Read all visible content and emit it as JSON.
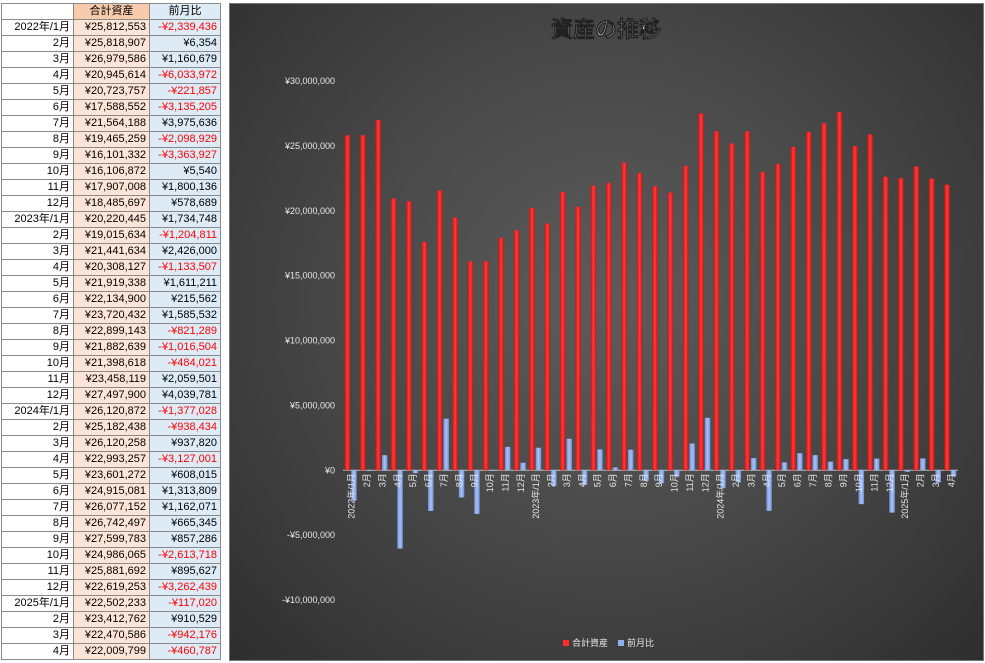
{
  "table": {
    "headers": [
      "",
      "合計資産",
      "前月比"
    ],
    "rows": [
      {
        "month": "2022年/1月",
        "total": "¥25,812,553",
        "diff": "-¥2,339,436"
      },
      {
        "month": "2月",
        "total": "¥25,818,907",
        "diff": "¥6,354"
      },
      {
        "month": "3月",
        "total": "¥26,979,586",
        "diff": "¥1,160,679"
      },
      {
        "month": "4月",
        "total": "¥20,945,614",
        "diff": "-¥6,033,972"
      },
      {
        "month": "5月",
        "total": "¥20,723,757",
        "diff": "-¥221,857"
      },
      {
        "month": "6月",
        "total": "¥17,588,552",
        "diff": "-¥3,135,205"
      },
      {
        "month": "7月",
        "total": "¥21,564,188",
        "diff": "¥3,975,636"
      },
      {
        "month": "8月",
        "total": "¥19,465,259",
        "diff": "-¥2,098,929"
      },
      {
        "month": "9月",
        "total": "¥16,101,332",
        "diff": "-¥3,363,927"
      },
      {
        "month": "10月",
        "total": "¥16,106,872",
        "diff": "¥5,540"
      },
      {
        "month": "11月",
        "total": "¥17,907,008",
        "diff": "¥1,800,136"
      },
      {
        "month": "12月",
        "total": "¥18,485,697",
        "diff": "¥578,689"
      },
      {
        "month": "2023年/1月",
        "total": "¥20,220,445",
        "diff": "¥1,734,748"
      },
      {
        "month": "2月",
        "total": "¥19,015,634",
        "diff": "-¥1,204,811"
      },
      {
        "month": "3月",
        "total": "¥21,441,634",
        "diff": "¥2,426,000"
      },
      {
        "month": "4月",
        "total": "¥20,308,127",
        "diff": "-¥1,133,507"
      },
      {
        "month": "5月",
        "total": "¥21,919,338",
        "diff": "¥1,611,211"
      },
      {
        "month": "6月",
        "total": "¥22,134,900",
        "diff": "¥215,562"
      },
      {
        "month": "7月",
        "total": "¥23,720,432",
        "diff": "¥1,585,532"
      },
      {
        "month": "8月",
        "total": "¥22,899,143",
        "diff": "-¥821,289"
      },
      {
        "month": "9月",
        "total": "¥21,882,639",
        "diff": "-¥1,016,504"
      },
      {
        "month": "10月",
        "total": "¥21,398,618",
        "diff": "-¥484,021"
      },
      {
        "month": "11月",
        "total": "¥23,458,119",
        "diff": "¥2,059,501"
      },
      {
        "month": "12月",
        "total": "¥27,497,900",
        "diff": "¥4,039,781"
      },
      {
        "month": "2024年/1月",
        "total": "¥26,120,872",
        "diff": "-¥1,377,028"
      },
      {
        "month": "2月",
        "total": "¥25,182,438",
        "diff": "-¥938,434"
      },
      {
        "month": "3月",
        "total": "¥26,120,258",
        "diff": "¥937,820"
      },
      {
        "month": "4月",
        "total": "¥22,993,257",
        "diff": "-¥3,127,001"
      },
      {
        "month": "5月",
        "total": "¥23,601,272",
        "diff": "¥608,015"
      },
      {
        "month": "6月",
        "total": "¥24,915,081",
        "diff": "¥1,313,809"
      },
      {
        "month": "7月",
        "total": "¥26,077,152",
        "diff": "¥1,162,071"
      },
      {
        "month": "8月",
        "total": "¥26,742,497",
        "diff": "¥665,345"
      },
      {
        "month": "9月",
        "total": "¥27,599,783",
        "diff": "¥857,286"
      },
      {
        "month": "10月",
        "total": "¥24,986,065",
        "diff": "-¥2,613,718"
      },
      {
        "month": "11月",
        "total": "¥25,881,692",
        "diff": "¥895,627"
      },
      {
        "month": "12月",
        "total": "¥22,619,253",
        "diff": "-¥3,262,439"
      },
      {
        "month": "2025年/1月",
        "total": "¥22,502,233",
        "diff": "-¥117,020"
      },
      {
        "month": "2月",
        "total": "¥23,412,762",
        "diff": "¥910,529"
      },
      {
        "month": "3月",
        "total": "¥22,470,586",
        "diff": "-¥942,176"
      },
      {
        "month": "4月",
        "total": "¥22,009,799",
        "diff": "-¥460,787"
      }
    ]
  },
  "colors": {
    "total_bar": "#ff2a2a",
    "diff_bar": "#8fb0ee",
    "negative_text": "#ff0000",
    "total_header_bg": "#f8cbad",
    "total_cell_bg": "#fce4d6",
    "diff_bg": "#ddebf7"
  },
  "chart_data": {
    "type": "bar",
    "title": "資産の推移",
    "categories": [
      "2022年/1月",
      "2月",
      "3月",
      "4月",
      "5月",
      "6月",
      "7月",
      "8月",
      "9月",
      "10月",
      "11月",
      "12月",
      "2023年/1月",
      "2月",
      "3月",
      "4月",
      "5月",
      "6月",
      "7月",
      "8月",
      "9月",
      "10月",
      "11月",
      "12月",
      "2024年/1月",
      "2月",
      "3月",
      "4月",
      "5月",
      "6月",
      "7月",
      "8月",
      "9月",
      "10月",
      "11月",
      "12月",
      "2025年/1月",
      "2月",
      "3月",
      "4月"
    ],
    "series": [
      {
        "name": "合計資産",
        "values": [
          25812553,
          25818907,
          26979586,
          20945614,
          20723757,
          17588552,
          21564188,
          19465259,
          16101332,
          16106872,
          17907008,
          18485697,
          20220445,
          19015634,
          21441634,
          20308127,
          21919338,
          22134900,
          23720432,
          22899143,
          21882639,
          21398618,
          23458119,
          27497900,
          26120872,
          25182438,
          26120258,
          22993257,
          23601272,
          24915081,
          26077152,
          26742497,
          27599783,
          24986065,
          25881692,
          22619253,
          22502233,
          23412762,
          22470586,
          22009799
        ]
      },
      {
        "name": "前月比",
        "values": [
          -2339436,
          6354,
          1160679,
          -6033972,
          -221857,
          -3135205,
          3975636,
          -2098929,
          -3363927,
          5540,
          1800136,
          578689,
          1734748,
          -1204811,
          2426000,
          -1133507,
          1611211,
          215562,
          1585532,
          -821289,
          -1016504,
          -484021,
          2059501,
          4039781,
          -1377028,
          -938434,
          937820,
          -3127001,
          608015,
          1313809,
          1162071,
          665345,
          857286,
          -2613718,
          895627,
          -3262439,
          -117020,
          910529,
          -942176,
          -460787
        ]
      }
    ],
    "ylim": [
      -10000000,
      30000000
    ],
    "yticks": [
      -10000000,
      -5000000,
      0,
      5000000,
      10000000,
      15000000,
      20000000,
      25000000,
      30000000
    ],
    "ytick_labels": [
      "-¥10,000,000",
      "-¥5,000,000",
      "¥0",
      "¥5,000,000",
      "¥10,000,000",
      "¥15,000,000",
      "¥20,000,000",
      "¥25,000,000",
      "¥30,000,000"
    ],
    "grid": false,
    "legend_position": "bottom",
    "legend": [
      "合計資産",
      "前月比"
    ]
  }
}
